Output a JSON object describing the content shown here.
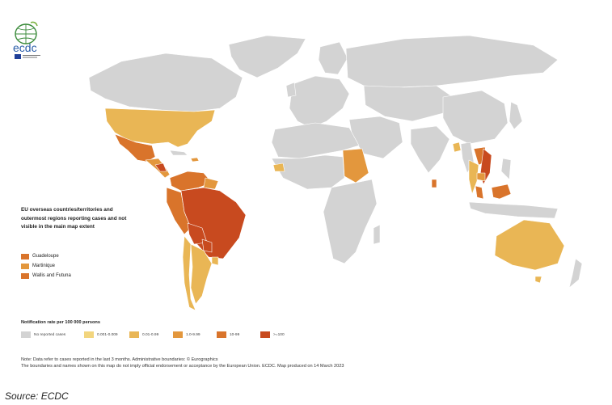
{
  "logo": {
    "text": "ecdc"
  },
  "eu_box": {
    "title": "EU overseas countries/territories and outermost regions reporting cases and not visible in the main map extent",
    "items": [
      {
        "label": "Guadeloupe",
        "color": "#D9742B"
      },
      {
        "label": "Martinique",
        "color": "#E3973D"
      },
      {
        "label": "Wallis and Futuna",
        "color": "#D9742B"
      }
    ]
  },
  "legend": {
    "title": "Notification rate per 100 000 persons",
    "classes": [
      {
        "label": "No reported cases",
        "color": "#D3D3D3"
      },
      {
        "label": "0.001-0.009",
        "color": "#F2D57E"
      },
      {
        "label": "0.01-0.99",
        "color": "#E9B655"
      },
      {
        "label": "1.0-9.99",
        "color": "#E3973D"
      },
      {
        "label": "10-99",
        "color": "#D9742B"
      },
      {
        "label": ">=100",
        "color": "#C84A1F"
      }
    ]
  },
  "note": {
    "line1": "Note: Data refer to cases reported in the last 3 months. Administrative boundaries: © Eurographics",
    "line2": "The boundaries and names shown on this map do not imply official endorsement or acceptance by the European Union. ECDC. Map produced on 14 March 2023"
  },
  "source": "Source: ECDC"
}
